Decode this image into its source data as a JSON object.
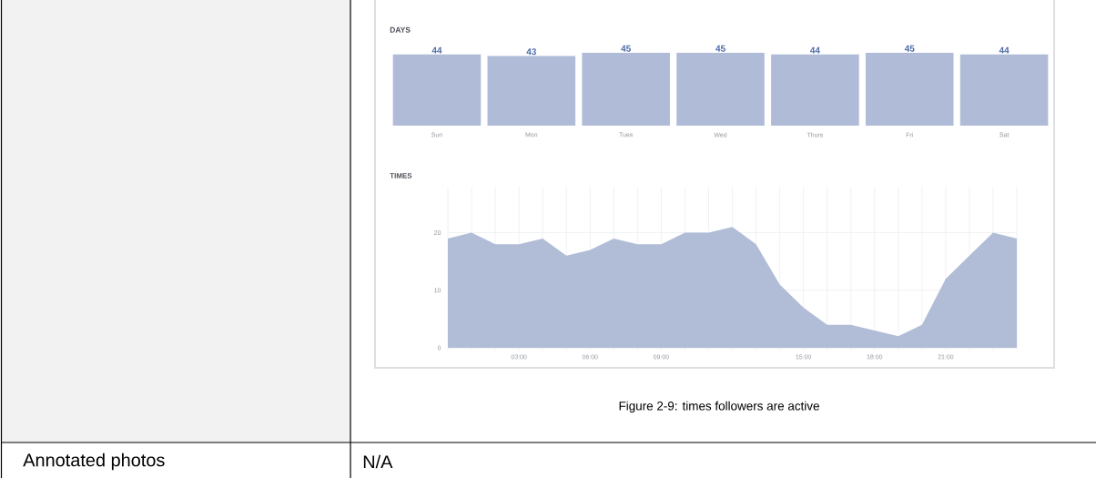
{
  "chart_data": [
    {
      "type": "bar",
      "title": "DAYS",
      "categories": [
        "Sun",
        "Mon",
        "Tues",
        "Wed",
        "Thurs",
        "Fri",
        "Sat"
      ],
      "values": [
        44,
        43,
        45,
        45,
        44,
        45,
        44
      ],
      "color": "#b0bcd7",
      "data_labels": true
    },
    {
      "type": "area",
      "title": "TIMES",
      "x": [
        0,
        1,
        2,
        3,
        4,
        5,
        6,
        7,
        8,
        9,
        10,
        11,
        12,
        13,
        14,
        15,
        16,
        17,
        18,
        19,
        20,
        21,
        22,
        23,
        24
      ],
      "values": [
        19,
        20,
        18,
        18,
        19,
        16,
        17,
        19,
        18,
        18,
        20,
        20,
        21,
        18,
        11,
        7,
        4,
        4,
        3,
        2,
        4,
        12,
        16,
        20,
        19
      ],
      "color": "#b1bdd7",
      "xlim": [
        0,
        24
      ],
      "ylim": [
        0,
        28
      ],
      "xticks": [
        {
          "value": 0,
          "label": null
        },
        {
          "value": 1,
          "label": null
        },
        {
          "value": 2,
          "label": null
        },
        {
          "value": 3,
          "label": "03:00"
        },
        {
          "value": 4,
          "label": null
        },
        {
          "value": 5,
          "label": null
        },
        {
          "value": 6,
          "label": "06:00"
        },
        {
          "value": 7,
          "label": null
        },
        {
          "value": 8,
          "label": null
        },
        {
          "value": 9,
          "label": "09:00"
        },
        {
          "value": 10,
          "label": null
        },
        {
          "value": 11,
          "label": null
        },
        {
          "value": 12,
          "label": null
        },
        {
          "value": 13,
          "label": null
        },
        {
          "value": 14,
          "label": null
        },
        {
          "value": 15,
          "label": "15:00"
        },
        {
          "value": 16,
          "label": null
        },
        {
          "value": 17,
          "label": null
        },
        {
          "value": 18,
          "label": "18:00"
        },
        {
          "value": 19,
          "label": null
        },
        {
          "value": 20,
          "label": null
        },
        {
          "value": 21,
          "label": "21:00"
        },
        {
          "value": 22,
          "label": null
        },
        {
          "value": 23,
          "label": null
        },
        {
          "value": 24,
          "label": null
        }
      ],
      "yticks": [
        0,
        10,
        20
      ],
      "grid": true,
      "annotations": [
        "Figure 2-9: times followers are active"
      ]
    },
    {
      "type": "other",
      "annotations": [
        "Annotated photos",
        "N/A"
      ]
    }
  ]
}
